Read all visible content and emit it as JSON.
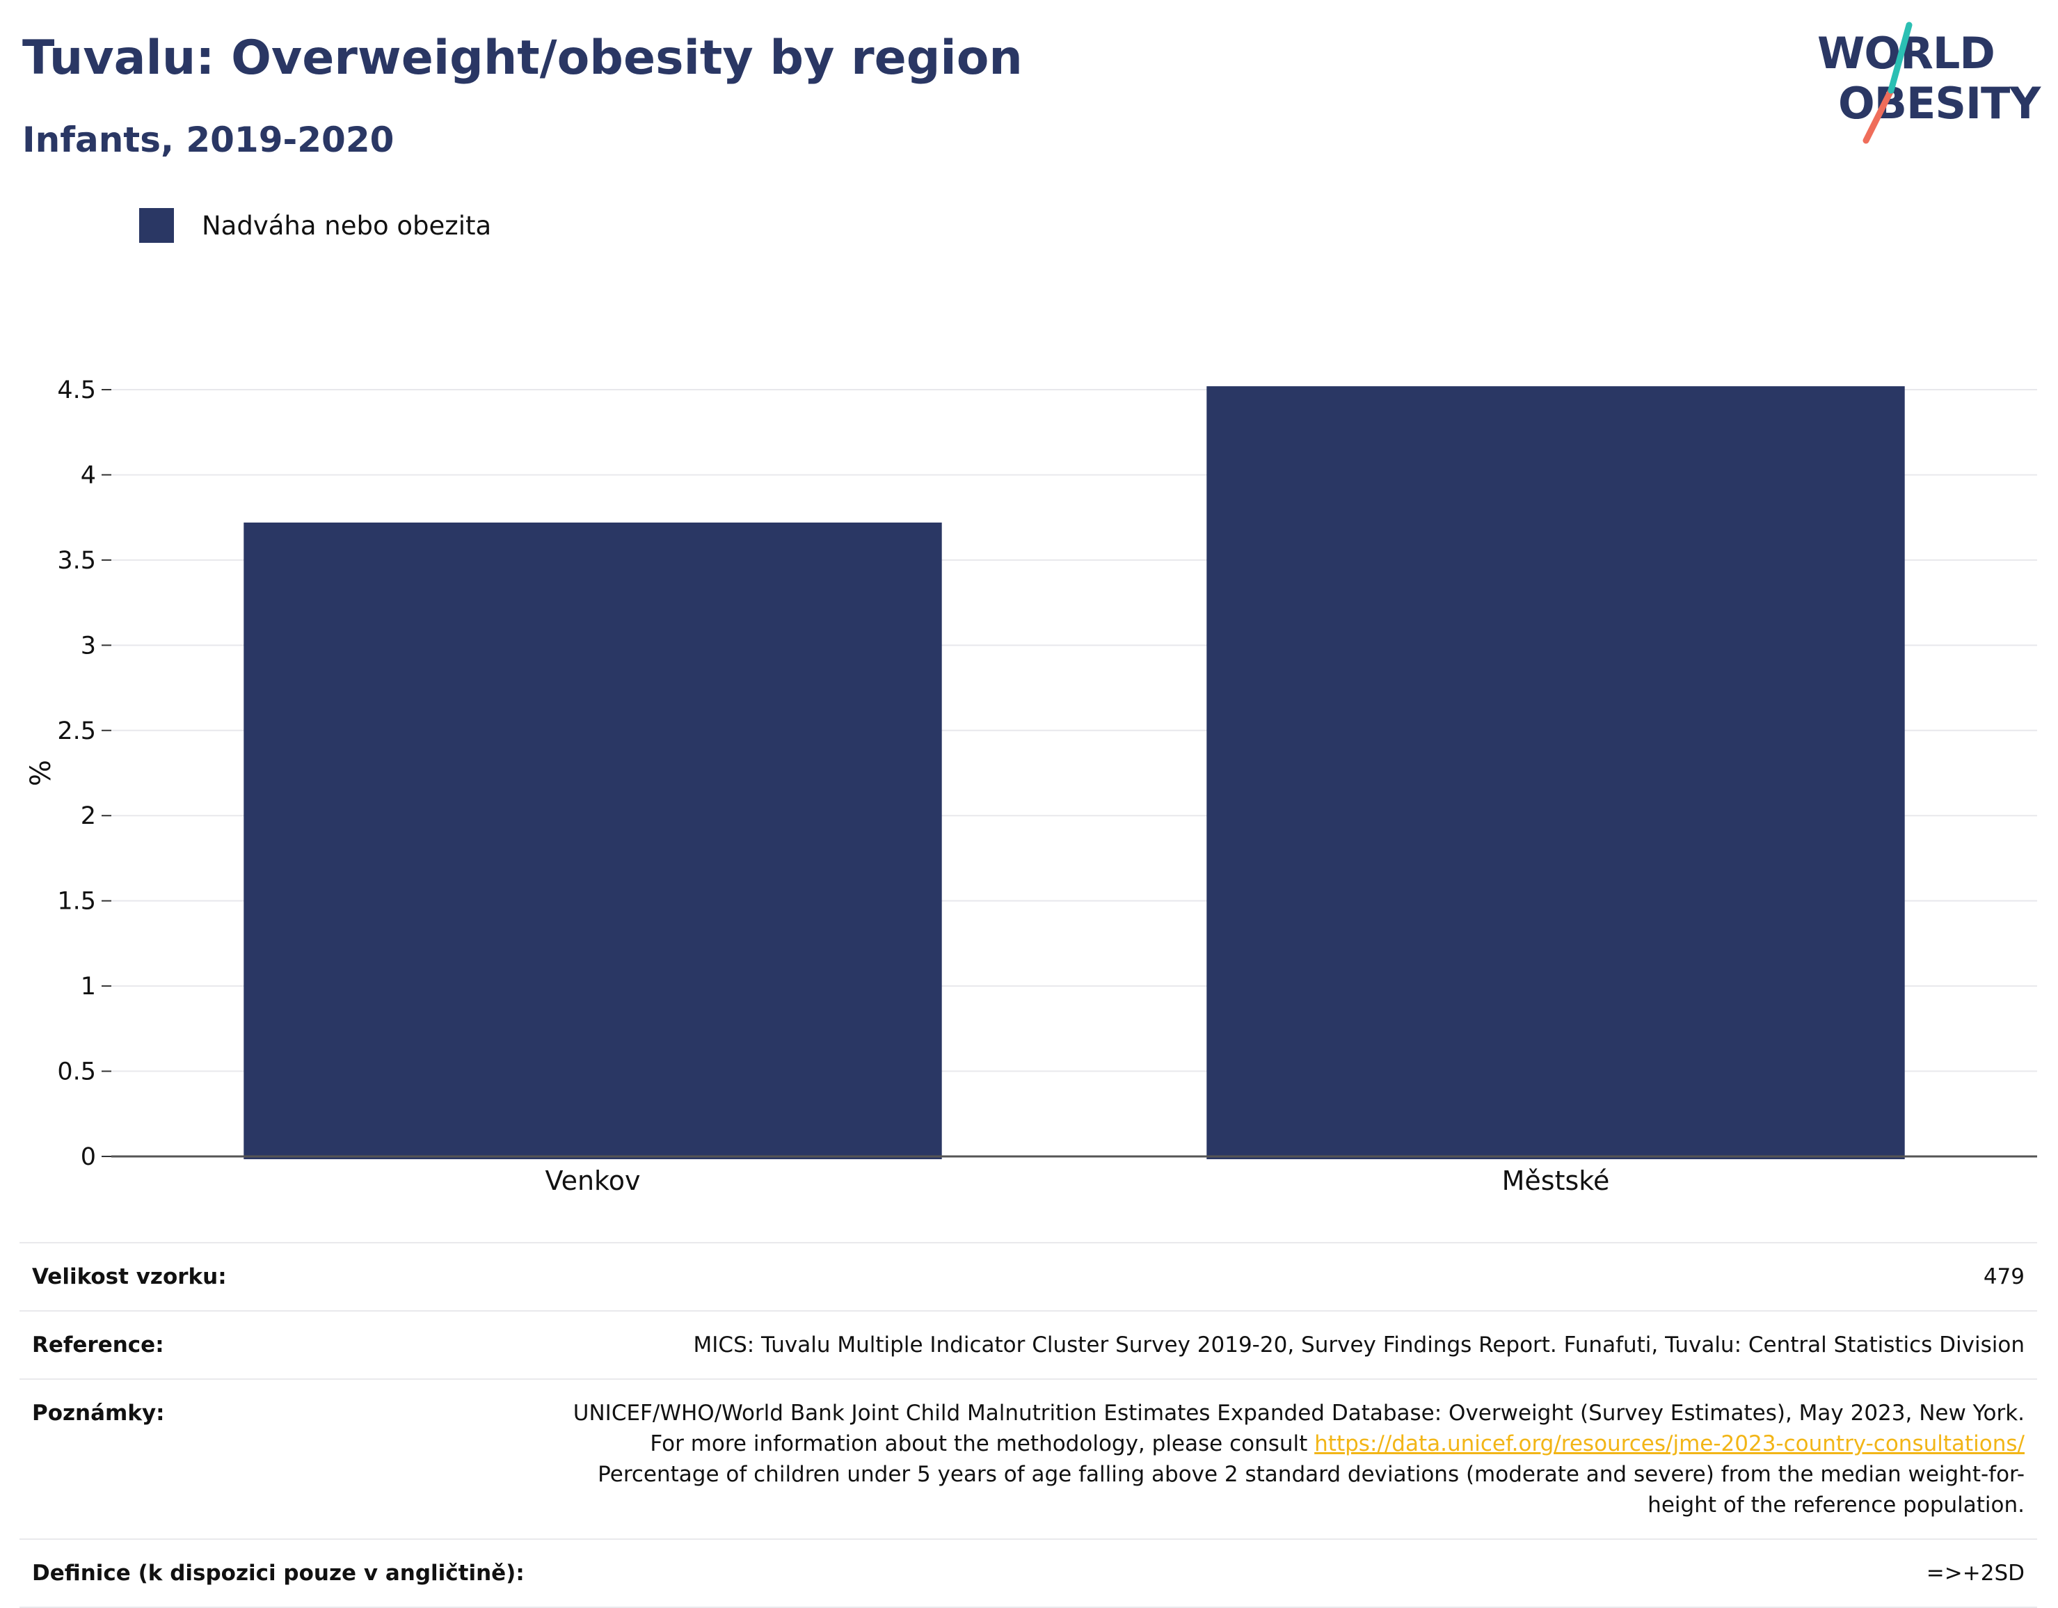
{
  "header": {
    "title": "Tuvalu: Overweight/obesity by region",
    "subtitle": "Infants, 2019-2020"
  },
  "logo": {
    "line1": "WORLD",
    "line2": "OBESITY",
    "text_color": "#2a3764",
    "accent_teal": "#2bbfb3",
    "accent_coral": "#ef6d5a"
  },
  "legend": {
    "label": "Nadváha nebo obezita",
    "color": "#2a3764"
  },
  "chart_data": {
    "type": "bar",
    "categories": [
      "Venkov",
      "Městské"
    ],
    "series": [
      {
        "name": "Nadváha nebo obezita",
        "values": [
          3.72,
          4.52
        ],
        "color": "#2a3764"
      }
    ],
    "ylabel": "%",
    "ylim": [
      0,
      4.5
    ],
    "yticks": [
      0,
      0.5,
      1,
      1.5,
      2,
      2.5,
      3,
      3.5,
      4,
      4.5
    ],
    "ytick_labels": [
      "0",
      "0.5",
      "1",
      "1.5",
      "2",
      "2.5",
      "3",
      "3.5",
      "4",
      "4.5"
    ],
    "grid": true,
    "legend_position": "top-left"
  },
  "meta": {
    "sample_size_label": "Velikost vzorku:",
    "sample_size_value": "479",
    "reference_label": "Reference:",
    "reference_value": "MICS: Tuvalu Multiple Indicator Cluster Survey 2019-20, Survey Findings Report. Funafuti, Tuvalu: Central Statistics Division",
    "notes_label": "Poznámky:",
    "notes_text_before": "UNICEF/WHO/World Bank Joint Child Malnutrition Estimates Expanded Database: Overweight (Survey Estimates), May 2023, New York. For more information about the methodology, please consult ",
    "notes_link": "https://data.unicef.org/resources/jme-2023-country-consultations/",
    "notes_text_after": "Percentage of children under 5 years of age falling above 2 standard deviations (moderate and severe) from the median weight-for-height of the reference population.",
    "definition_label": "Definice (k dispozici pouze v angličtině):",
    "definition_value": "=>+2SD"
  }
}
